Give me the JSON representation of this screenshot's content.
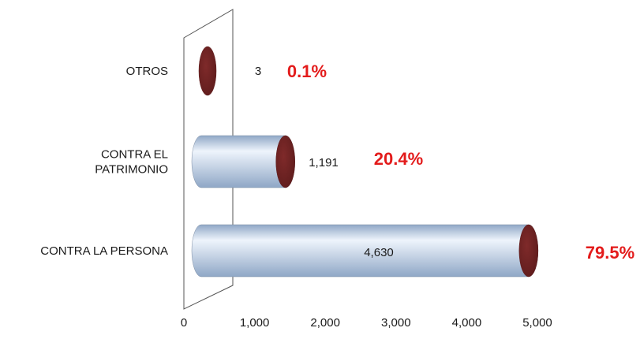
{
  "chart_data": {
    "type": "bar",
    "orientation": "horizontal",
    "style": "3d-cylinder",
    "categories": [
      "OTROS",
      "CONTRA EL PATRIMONIO",
      "CONTRA LA PERSONA"
    ],
    "category_lines": [
      [
        "OTROS"
      ],
      [
        "CONTRA EL",
        "PATRIMONIO"
      ],
      [
        "CONTRA LA PERSONA"
      ]
    ],
    "values": [
      3,
      1191,
      4630
    ],
    "value_labels": [
      "3",
      "1,191",
      "4,630"
    ],
    "percent_labels": [
      "0.1%",
      "20.4%",
      "79.5%"
    ],
    "xlim": [
      0,
      5000
    ],
    "x_ticks": [
      0,
      1000,
      2000,
      3000,
      4000,
      5000
    ],
    "x_tick_labels": [
      "0",
      "1,000",
      "2,000",
      "3,000",
      "4,000",
      "5,000"
    ],
    "grid": false,
    "legend": "none",
    "colors": {
      "cylinder_body": "#c6d8f0",
      "cylinder_highlight": "#eef4fc",
      "cylinder_shade": "#8fa7c6",
      "cap": "#7f2a2a",
      "cap_dark": "#5e1c1c",
      "percent": "#e31b1b",
      "wall_stroke": "#555555"
    }
  }
}
